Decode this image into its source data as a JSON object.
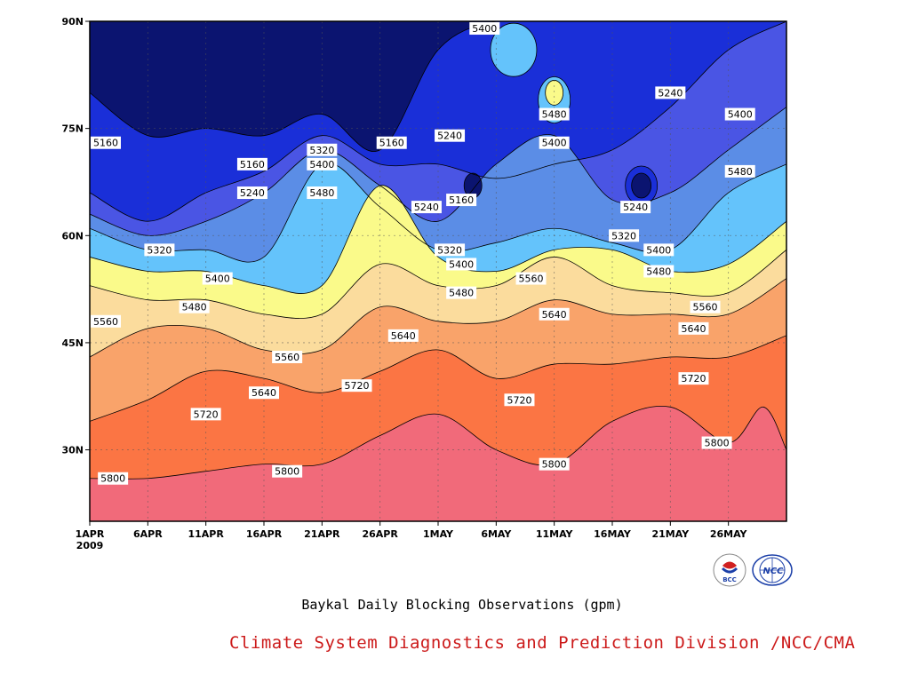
{
  "chart_data": {
    "type": "heatmap",
    "subtype": "filled-contour",
    "title": "Baykal Daily Blocking Observations (gpm)",
    "x_axis": {
      "start": "1APR 2009",
      "ticks": [
        "1APR",
        "6APR",
        "11APR",
        "16APR",
        "21APR",
        "26APR",
        "1MAY",
        "6MAY",
        "11MAY",
        "16MAY",
        "21MAY",
        "26MAY"
      ],
      "year_label": "2009",
      "range_days": [
        0,
        60
      ]
    },
    "y_axis": {
      "ticks": [
        "30N",
        "45N",
        "60N",
        "75N",
        "90N"
      ],
      "tick_values": [
        30,
        45,
        60,
        75,
        90
      ],
      "range": [
        20,
        90
      ]
    },
    "grid": "dotted",
    "contour_levels": [
      5160,
      5240,
      5320,
      5400,
      5480,
      5560,
      5640,
      5720,
      5800
    ],
    "fill_colors": [
      "#0b1470",
      "#1a2fd8",
      "#4a55e4",
      "#5b8de6",
      "#64c3fb",
      "#fafa8a",
      "#fbdc9d",
      "#f9a36a",
      "#fb7544",
      "#f16a7a"
    ],
    "contour_lines": [
      {
        "level": 5800,
        "x_days": [
          0,
          5,
          10,
          15,
          20,
          25,
          30,
          35,
          40,
          45,
          50,
          55,
          58,
          60
        ],
        "y_lat": [
          26,
          26,
          27,
          28,
          28,
          32,
          35,
          30,
          28,
          34,
          36,
          31,
          36,
          30
        ]
      },
      {
        "level": 5720,
        "x_days": [
          0,
          5,
          10,
          15,
          20,
          25,
          30,
          35,
          40,
          45,
          50,
          55,
          60
        ],
        "y_lat": [
          34,
          37,
          41,
          40,
          38,
          41,
          44,
          40,
          42,
          42,
          43,
          43,
          46
        ]
      },
      {
        "level": 5640,
        "x_days": [
          0,
          5,
          10,
          15,
          20,
          25,
          30,
          35,
          40,
          45,
          50,
          55,
          60
        ],
        "y_lat": [
          43,
          47,
          47,
          44,
          44,
          50,
          48,
          48,
          51,
          49,
          49,
          49,
          54
        ]
      },
      {
        "level": 5560,
        "x_days": [
          0,
          5,
          10,
          15,
          20,
          25,
          30,
          35,
          40,
          45,
          50,
          55,
          60
        ],
        "y_lat": [
          53,
          51,
          51,
          49,
          49,
          56,
          53,
          53,
          57,
          53,
          52,
          52,
          58
        ]
      },
      {
        "level": 5480,
        "x_days": [
          0,
          5,
          10,
          15,
          20,
          25,
          30,
          35,
          40,
          45,
          50,
          55,
          60
        ],
        "y_lat": [
          57,
          55,
          55,
          53,
          53,
          67,
          57,
          55,
          58,
          58,
          55,
          56,
          62
        ]
      }
    ],
    "contour_labels": [
      {
        "text": "5160",
        "day": 1,
        "lat": 73
      },
      {
        "text": "5160",
        "day": 14,
        "lat": 70
      },
      {
        "text": "5240",
        "day": 14,
        "lat": 66
      },
      {
        "text": "5320",
        "day": 6,
        "lat": 58
      },
      {
        "text": "5400",
        "day": 11,
        "lat": 54
      },
      {
        "text": "5480",
        "day": 9,
        "lat": 50
      },
      {
        "text": "5560",
        "day": 0,
        "lat": 48
      },
      {
        "text": "5560",
        "day": 17,
        "lat": 43
      },
      {
        "text": "5640",
        "day": 15,
        "lat": 38
      },
      {
        "text": "5720",
        "day": 10,
        "lat": 35
      },
      {
        "text": "5800",
        "day": 2,
        "lat": 26
      },
      {
        "text": "5800",
        "day": 17,
        "lat": 27
      },
      {
        "text": "5320",
        "day": 20,
        "lat": 72
      },
      {
        "text": "5400",
        "day": 20,
        "lat": 70
      },
      {
        "text": "5480",
        "day": 20,
        "lat": 66
      },
      {
        "text": "5160",
        "day": 26,
        "lat": 73
      },
      {
        "text": "5240",
        "day": 31,
        "lat": 74
      },
      {
        "text": "5160",
        "day": 32,
        "lat": 65
      },
      {
        "text": "5240",
        "day": 29,
        "lat": 64
      },
      {
        "text": "5320",
        "day": 31,
        "lat": 58
      },
      {
        "text": "5400",
        "day": 32,
        "lat": 56
      },
      {
        "text": "5480",
        "day": 32,
        "lat": 52
      },
      {
        "text": "5640",
        "day": 27,
        "lat": 46
      },
      {
        "text": "5720",
        "day": 23,
        "lat": 39
      },
      {
        "text": "5400",
        "day": 34,
        "lat": 89
      },
      {
        "text": "5480",
        "day": 40,
        "lat": 77
      },
      {
        "text": "5400",
        "day": 40,
        "lat": 73
      },
      {
        "text": "5560",
        "day": 38,
        "lat": 54
      },
      {
        "text": "5640",
        "day": 40,
        "lat": 49
      },
      {
        "text": "5720",
        "day": 37,
        "lat": 37
      },
      {
        "text": "5800",
        "day": 40,
        "lat": 28
      },
      {
        "text": "5240",
        "day": 50,
        "lat": 80
      },
      {
        "text": "5240",
        "day": 47,
        "lat": 64
      },
      {
        "text": "5320",
        "day": 46,
        "lat": 60
      },
      {
        "text": "5400",
        "day": 49,
        "lat": 58
      },
      {
        "text": "5480",
        "day": 49,
        "lat": 55
      },
      {
        "text": "5560",
        "day": 53,
        "lat": 50
      },
      {
        "text": "5640",
        "day": 52,
        "lat": 47
      },
      {
        "text": "5720",
        "day": 52,
        "lat": 40
      },
      {
        "text": "5800",
        "day": 54,
        "lat": 31
      },
      {
        "text": "5400",
        "day": 56,
        "lat": 77
      },
      {
        "text": "5480",
        "day": 56,
        "lat": 69
      }
    ]
  },
  "footer": "Climate System Diagnostics and Prediction Division /NCC/CMA",
  "logos": [
    {
      "name": "BCC",
      "text": "BCC"
    },
    {
      "name": "NCC",
      "text": "NCC"
    }
  ]
}
